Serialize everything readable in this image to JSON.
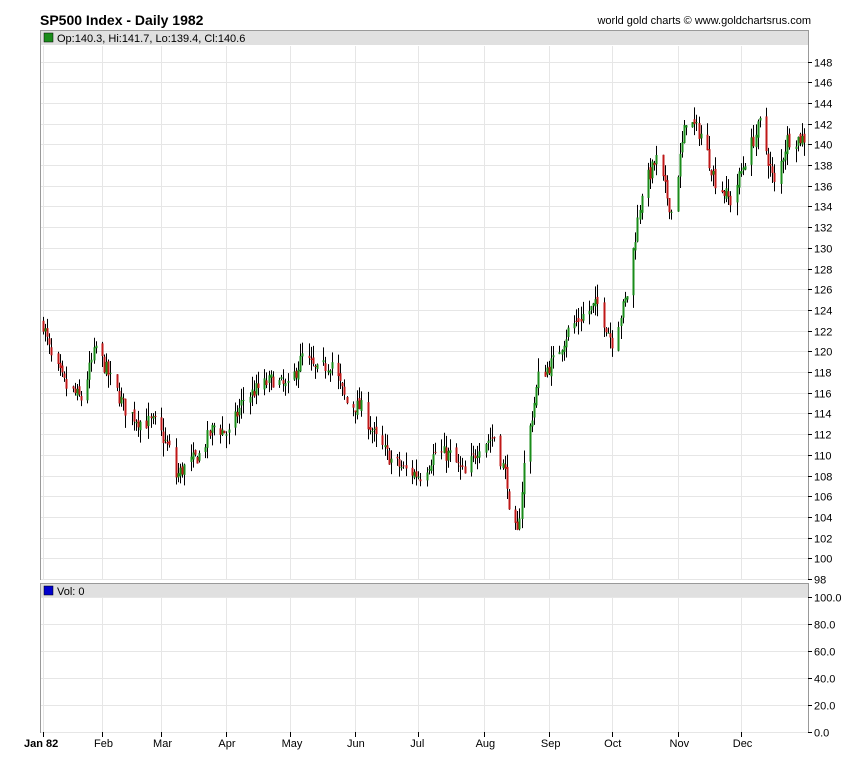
{
  "header": {
    "title": "SP500 Index - Daily 1982",
    "credit": "world gold charts © www.goldchartsrus.com"
  },
  "price_panel": {
    "legend": "Op:140.3, Hi:141.7, Lo:139.4, Cl:140.6",
    "legend_color": "#1a8c1a"
  },
  "volume_panel": {
    "legend": "Vol: 0",
    "legend_color": "#0000cc"
  },
  "colors": {
    "up": "#1a8c1a",
    "down": "#c01818",
    "wick": "#000000",
    "grid": "#e6e6e6",
    "band": "#e0e0e0"
  },
  "chart_data": [
    {
      "type": "candlestick",
      "series": [
        {
          "name": "SP500 Index",
          "y_points": [
            [
              "1982-01-04",
              122.7
            ],
            [
              "1982-01-08",
              119.3
            ],
            [
              "1982-01-15",
              116.5
            ],
            [
              "1982-01-22",
              115.4
            ],
            [
              "1982-01-29",
              120.4
            ],
            [
              "1982-02-05",
              117.3
            ],
            [
              "1982-02-12",
              114.4
            ],
            [
              "1982-02-19",
              113.2
            ],
            [
              "1982-02-26",
              113.1
            ],
            [
              "1982-03-05",
              110.5
            ],
            [
              "1982-03-08",
              107.9
            ],
            [
              "1982-03-12",
              108.8
            ],
            [
              "1982-03-19",
              110.0
            ],
            [
              "1982-03-26",
              112.8
            ],
            [
              "1982-04-02",
              112.0
            ],
            [
              "1982-04-09",
              115.4
            ],
            [
              "1982-04-16",
              116.4
            ],
            [
              "1982-04-23",
              117.3
            ],
            [
              "1982-04-30",
              116.4
            ],
            [
              "1982-05-07",
              119.5
            ],
            [
              "1982-05-14",
              118.0
            ],
            [
              "1982-05-21",
              119.0
            ],
            [
              "1982-05-28",
              115.0
            ],
            [
              "1982-06-04",
              114.5
            ],
            [
              "1982-06-11",
              111.5
            ],
            [
              "1982-06-18",
              109.5
            ],
            [
              "1982-06-25",
              108.5
            ],
            [
              "1982-07-02",
              108.0
            ],
            [
              "1982-07-09",
              110.2
            ],
            [
              "1982-07-16",
              110.0
            ],
            [
              "1982-07-23",
              108.0
            ],
            [
              "1982-07-30",
              111.0
            ],
            [
              "1982-08-06",
              111.8
            ],
            [
              "1982-08-12",
              107.5
            ],
            [
              "1982-08-13",
              104.0
            ],
            [
              "1982-08-17",
              102.2
            ],
            [
              "1982-08-20",
              109.0
            ],
            [
              "1982-08-27",
              117.5
            ],
            [
              "1982-09-03",
              119.0
            ],
            [
              "1982-09-10",
              122.0
            ],
            [
              "1982-09-17",
              123.5
            ],
            [
              "1982-09-24",
              124.5
            ],
            [
              "1982-10-01",
              121.0
            ],
            [
              "1982-10-08",
              125.5
            ],
            [
              "1982-10-15",
              135.5
            ],
            [
              "1982-10-22",
              138.5
            ],
            [
              "1982-10-29",
              133.5
            ],
            [
              "1982-11-05",
              142.5
            ],
            [
              "1982-11-12",
              141.0
            ],
            [
              "1982-11-19",
              136.5
            ],
            [
              "1982-11-26",
              134.5
            ],
            [
              "1982-12-03",
              138.5
            ],
            [
              "1982-12-10",
              142.0
            ],
            [
              "1982-12-17",
              136.0
            ],
            [
              "1982-12-23",
              140.5
            ],
            [
              "1982-12-31",
              140.6
            ]
          ]
        }
      ],
      "x_range": [
        "1982-01-04",
        "1982-12-31"
      ],
      "x_ticks": [
        "Jan 82",
        "Feb",
        "Mar",
        "Apr",
        "May",
        "Jun",
        "Jul",
        "Aug",
        "Sep",
        "Oct",
        "Nov",
        "Dec"
      ],
      "y_ticks": [
        98,
        100,
        102,
        104,
        106,
        108,
        110,
        112,
        114,
        116,
        118,
        120,
        122,
        124,
        126,
        128,
        130,
        132,
        134,
        136,
        138,
        140,
        142,
        144,
        146,
        148
      ],
      "ylim": [
        98,
        149.5
      ],
      "grid": true,
      "legend": "top-left"
    },
    {
      "type": "bar",
      "series": [
        {
          "name": "Vol",
          "values": [
            0
          ]
        }
      ],
      "y_ticks": [
        "0.0",
        "20.0",
        "40.0",
        "60.0",
        "80.0",
        "100.0"
      ],
      "ylim": [
        0,
        100
      ],
      "grid": true,
      "legend": "top-left"
    }
  ]
}
